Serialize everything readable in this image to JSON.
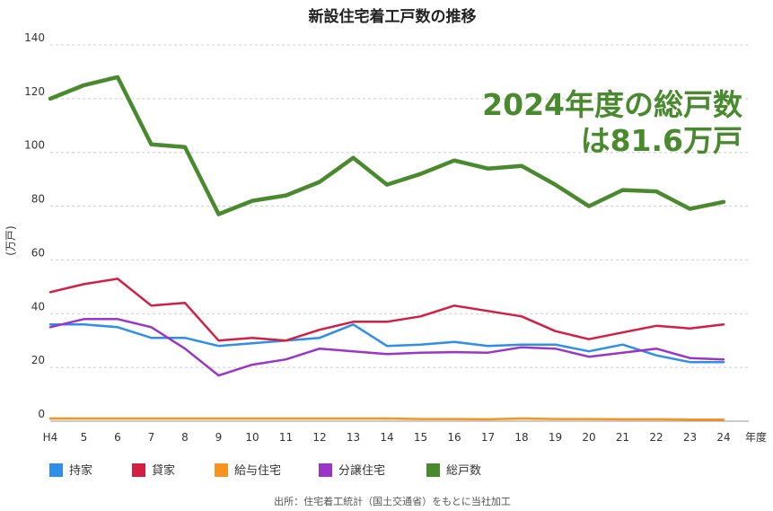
{
  "chart_data": {
    "type": "line",
    "title": "新設住宅着工戸数の推移",
    "ylabel": "(万戸)",
    "xunit": "年度",
    "ylim": [
      0,
      140
    ],
    "yticks": [
      0,
      20,
      40,
      60,
      80,
      100,
      120,
      140
    ],
    "grid": true,
    "legend_placement": "bottom-left",
    "categories": [
      "H4",
      "5",
      "6",
      "7",
      "8",
      "9",
      "10",
      "11",
      "12",
      "13",
      "14",
      "15",
      "16",
      "17",
      "18",
      "19",
      "20",
      "21",
      "22",
      "23",
      "24"
    ],
    "series": [
      {
        "name": "持家",
        "color": "#2f8ee8",
        "values": [
          36,
          36,
          35,
          31,
          31,
          28,
          29,
          30,
          31,
          36,
          28,
          28.5,
          29.5,
          28,
          28.5,
          28.5,
          26,
          28.5,
          24.5,
          22,
          22
        ]
      },
      {
        "name": "貸家",
        "color": "#d21f43",
        "values": [
          48,
          51,
          53,
          43,
          44,
          30,
          31,
          30,
          34,
          37,
          37,
          39,
          43,
          41,
          39,
          33.5,
          30.5,
          33,
          35.5,
          34.5,
          36
        ]
      },
      {
        "name": "給与住宅",
        "color": "#f7931e",
        "values": [
          1,
          1,
          1,
          1,
          1,
          1,
          1,
          1,
          1,
          1,
          1,
          0.8,
          0.8,
          0.7,
          1,
          0.8,
          0.8,
          0.7,
          0.7,
          0.6,
          0.6
        ]
      },
      {
        "name": "分譲住宅",
        "color": "#9a35c8",
        "values": [
          35,
          38,
          38,
          35,
          27,
          17,
          21,
          23,
          27,
          26,
          25,
          25.5,
          25.7,
          25.5,
          27.5,
          27,
          24,
          25.5,
          27,
          23.5,
          23
        ]
      },
      {
        "name": "総戸数",
        "color": "#4a8a2e",
        "values": [
          120,
          125,
          128,
          103,
          102,
          77,
          82,
          84,
          89,
          98,
          88,
          92,
          97,
          94,
          95,
          88,
          80,
          86,
          85.5,
          79,
          81.6
        ]
      }
    ],
    "annotation": {
      "line1": "2024年度の総戸数",
      "line2": "は81.6万戸"
    },
    "source": "出所：住宅着工統計（国土交通省）をもとに当社加工"
  }
}
